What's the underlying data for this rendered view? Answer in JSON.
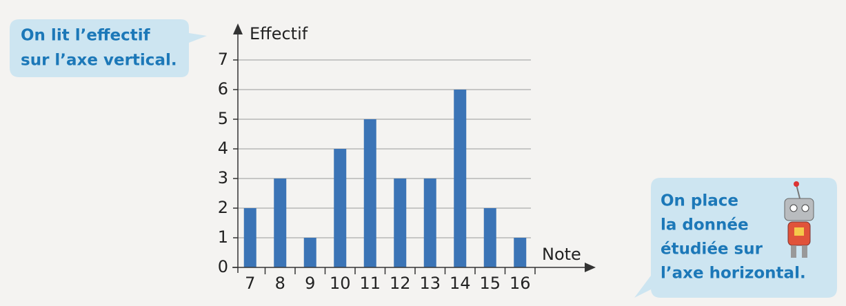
{
  "chart_data": {
    "type": "bar",
    "categories": [
      "7",
      "8",
      "9",
      "10",
      "11",
      "12",
      "13",
      "14",
      "15",
      "16"
    ],
    "values": [
      2,
      3,
      1,
      4,
      5,
      3,
      3,
      6,
      2,
      1
    ],
    "color": "#3b74b6",
    "ylim": [
      0,
      7
    ],
    "yticks": [
      0,
      1,
      2,
      3,
      4,
      5,
      6,
      7
    ],
    "grid": true,
    "y_label": "Effectif",
    "x_label": "Note",
    "annotations": [
      [
        "On lit l’effectif",
        "sur l’axe vertical."
      ],
      [
        "On place",
        "la donnée",
        "étudiée sur",
        "l’axe horizontal."
      ]
    ]
  }
}
